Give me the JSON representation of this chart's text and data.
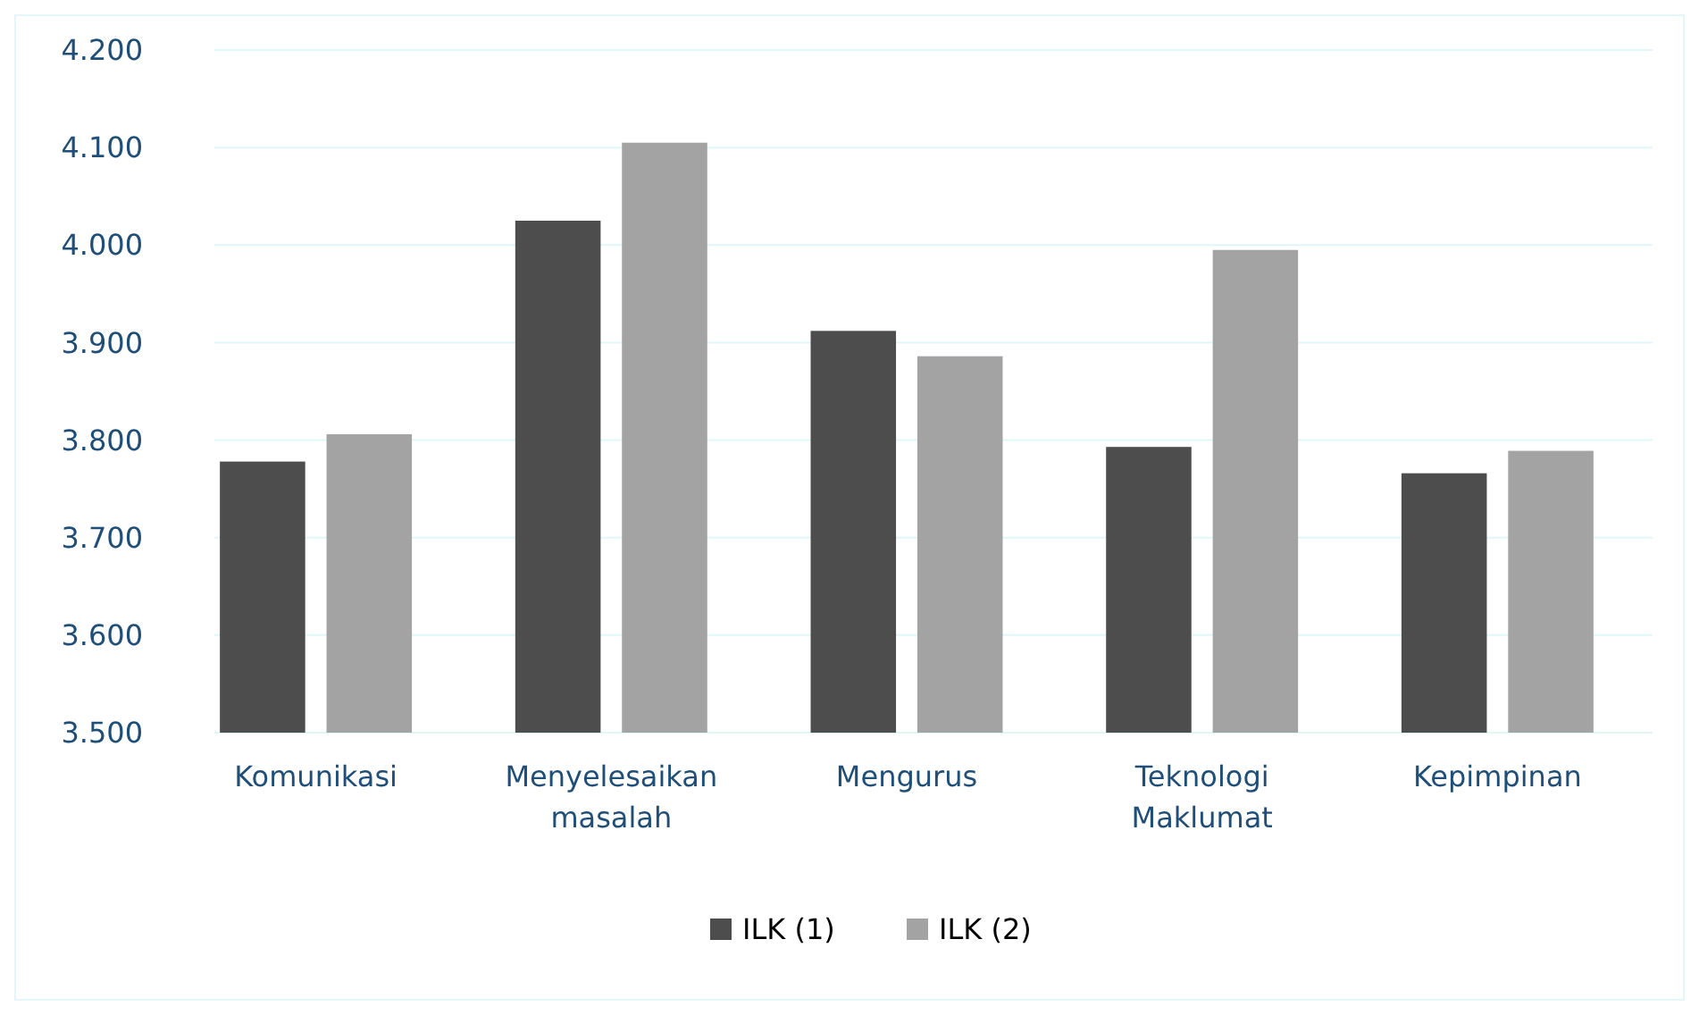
{
  "chart_data": {
    "type": "bar",
    "categories": [
      "Komunikasi",
      "Menyelesaikan masalah",
      "Mengurus",
      "Teknologi Maklumat",
      "Kepimpinan"
    ],
    "series": [
      {
        "name": "ILK (1)",
        "color": "#4d4d4d",
        "values": [
          3.778,
          4.025,
          3.912,
          3.793,
          3.766
        ]
      },
      {
        "name": "ILK (2)",
        "color": "#a3a3a3",
        "values": [
          3.806,
          4.105,
          3.886,
          3.995,
          3.789
        ]
      }
    ],
    "ylim": [
      3.5,
      4.2
    ],
    "yticks": [
      {
        "value": 3.5,
        "label": "3.500"
      },
      {
        "value": 3.6,
        "label": "3.600"
      },
      {
        "value": 3.7,
        "label": "3.700"
      },
      {
        "value": 3.8,
        "label": "3.800"
      },
      {
        "value": 3.9,
        "label": "3.900"
      },
      {
        "value": 4.0,
        "label": "4.000"
      },
      {
        "value": 4.1,
        "label": "4.100"
      },
      {
        "value": 4.2,
        "label": "4.200"
      }
    ],
    "grid": "y",
    "legend": "bottom"
  }
}
